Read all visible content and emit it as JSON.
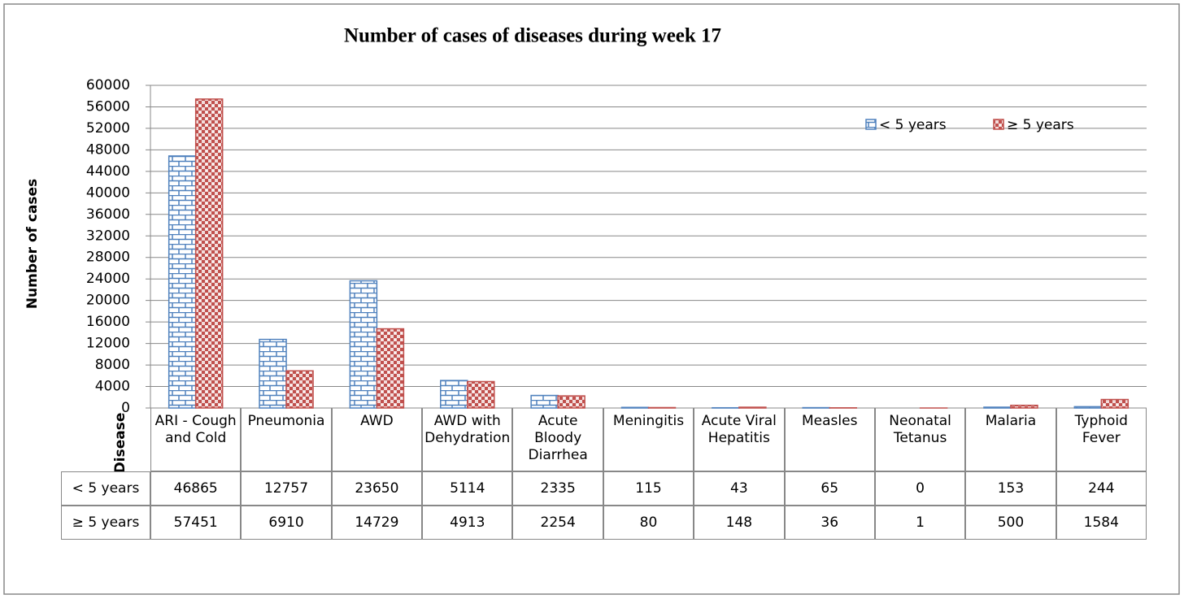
{
  "chart_data": {
    "type": "bar",
    "title": "Number of cases of diseases during week 17",
    "y_label": "Number of cases",
    "x_label": "Disease",
    "categories": [
      "ARI - Cough and Cold",
      "Pneumonia",
      "AWD",
      "AWD with Dehydration",
      "Acute Bloody Diarrhea",
      "Meningitis",
      "Acute Viral Hepatitis",
      "Measles",
      "Neonatal Tetanus",
      "Malaria",
      "Typhoid Fever"
    ],
    "series": [
      {
        "name": "< 5 years",
        "color": "#4f81bd",
        "values": [
          46865,
          12757,
          23650,
          5114,
          2335,
          115,
          43,
          65,
          0,
          153,
          244
        ]
      },
      {
        "name": "≥ 5 years",
        "color": "#c0504d",
        "values": [
          57451,
          6910,
          14729,
          4913,
          2254,
          80,
          148,
          36,
          1,
          500,
          1584
        ]
      }
    ],
    "ylim": [
      0,
      60000
    ],
    "yticks": [
      0,
      4000,
      8000,
      12000,
      16000,
      20000,
      24000,
      28000,
      32000,
      36000,
      40000,
      44000,
      48000,
      52000,
      56000,
      60000
    ],
    "grid": true,
    "legend": "top-right",
    "data_table": true
  }
}
